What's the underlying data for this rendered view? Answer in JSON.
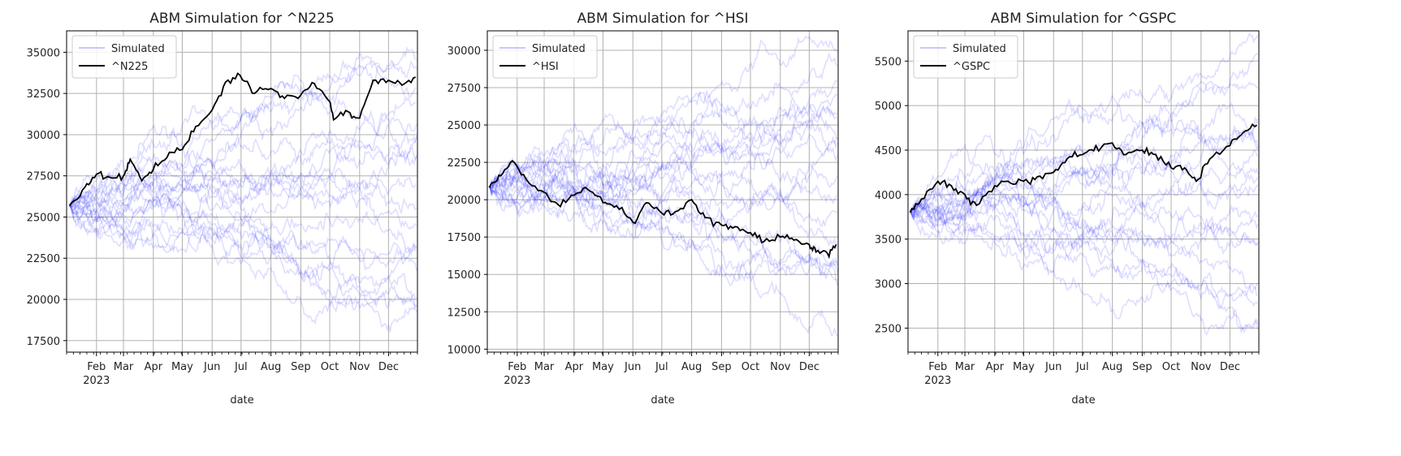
{
  "chart_data": [
    {
      "type": "line",
      "title": "ABM Simulation for ^N225",
      "xlabel": "date",
      "ylabel": "",
      "x_range": [
        "2023-01-01",
        "2023-12-31"
      ],
      "ylim": [
        16800,
        36300
      ],
      "yticks": [
        17500,
        20000,
        22500,
        25000,
        27500,
        30000,
        32500,
        35000
      ],
      "ytick_labels": [
        "17500",
        "20000",
        "22500",
        "25000",
        "27500",
        "30000",
        "32500",
        "35000"
      ],
      "xtick_dates": [
        "2023-02-01",
        "2023-03-01",
        "2023-04-01",
        "2023-05-01",
        "2023-06-01",
        "2023-07-01",
        "2023-08-01",
        "2023-09-01",
        "2023-10-01",
        "2023-11-01",
        "2023-12-01"
      ],
      "xtick_labels": [
        "Feb",
        "Mar",
        "Apr",
        "May",
        "Jun",
        "Jul",
        "Aug",
        "Sep",
        "Oct",
        "Nov",
        "Dec"
      ],
      "year_label": "2023",
      "grid": true,
      "legend": {
        "placement": "top-left",
        "entries": [
          "Simulated",
          "^N225"
        ]
      },
      "simulated_series": {
        "name": "Simulated",
        "count": 20,
        "start": 25700,
        "spread_end": [
          17800,
          35200
        ]
      },
      "series": [
        {
          "name": "^N225",
          "x": [
            "2023-01-04",
            "2023-01-20",
            "2023-02-01",
            "2023-02-15",
            "2023-03-01",
            "2023-03-08",
            "2023-03-20",
            "2023-04-01",
            "2023-04-15",
            "2023-05-01",
            "2023-05-15",
            "2023-06-01",
            "2023-06-15",
            "2023-06-30",
            "2023-07-15",
            "2023-08-01",
            "2023-08-15",
            "2023-09-01",
            "2023-09-15",
            "2023-10-01",
            "2023-10-05",
            "2023-10-20",
            "2023-11-01",
            "2023-11-15",
            "2023-12-01",
            "2023-12-15",
            "2023-12-29"
          ],
          "values": [
            25700,
            26800,
            27600,
            27400,
            27500,
            28500,
            27200,
            27900,
            28600,
            29100,
            30500,
            31500,
            33200,
            33600,
            32500,
            32800,
            32200,
            32400,
            33100,
            32000,
            30900,
            31400,
            31000,
            33300,
            33300,
            33000,
            33500
          ]
        }
      ]
    },
    {
      "type": "line",
      "title": "ABM Simulation for ^HSI",
      "xlabel": "date",
      "ylabel": "",
      "x_range": [
        "2023-01-01",
        "2023-12-31"
      ],
      "ylim": [
        9800,
        31300
      ],
      "yticks": [
        10000,
        12500,
        15000,
        17500,
        20000,
        22500,
        25000,
        27500,
        30000
      ],
      "ytick_labels": [
        "10000",
        "12500",
        "15000",
        "17500",
        "20000",
        "22500",
        "25000",
        "27500",
        "30000"
      ],
      "xtick_dates": [
        "2023-02-01",
        "2023-03-01",
        "2023-04-01",
        "2023-05-01",
        "2023-06-01",
        "2023-07-01",
        "2023-08-01",
        "2023-09-01",
        "2023-10-01",
        "2023-11-01",
        "2023-12-01"
      ],
      "xtick_labels": [
        "Feb",
        "Mar",
        "Apr",
        "May",
        "Jun",
        "Jul",
        "Aug",
        "Sep",
        "Oct",
        "Nov",
        "Dec"
      ],
      "year_label": "2023",
      "grid": true,
      "legend": {
        "placement": "top-left",
        "entries": [
          "Simulated",
          "^HSI"
        ]
      },
      "simulated_series": {
        "name": "Simulated",
        "count": 20,
        "start": 20800,
        "spread_end": [
          12500,
          30000
        ]
      },
      "series": [
        {
          "name": "^HSI",
          "x": [
            "2023-01-03",
            "2023-01-15",
            "2023-01-27",
            "2023-02-10",
            "2023-03-01",
            "2023-03-15",
            "2023-04-01",
            "2023-04-15",
            "2023-05-01",
            "2023-05-15",
            "2023-06-01",
            "2023-06-15",
            "2023-07-01",
            "2023-07-15",
            "2023-08-01",
            "2023-08-15",
            "2023-09-01",
            "2023-09-15",
            "2023-10-01",
            "2023-10-15",
            "2023-11-01",
            "2023-11-15",
            "2023-12-01",
            "2023-12-08",
            "2023-12-20",
            "2023-12-29"
          ],
          "values": [
            20800,
            21600,
            22600,
            21400,
            20500,
            19700,
            20300,
            20700,
            19800,
            19600,
            18500,
            19800,
            19100,
            19200,
            20000,
            18800,
            18300,
            18200,
            17800,
            17200,
            17500,
            17300,
            17000,
            16500,
            16400,
            17000
          ]
        }
      ]
    },
    {
      "type": "line",
      "title": "ABM Simulation for ^GSPC",
      "xlabel": "date",
      "ylabel": "",
      "x_range": [
        "2023-01-01",
        "2023-12-31"
      ],
      "ylim": [
        2230,
        5840
      ],
      "yticks": [
        2500,
        3000,
        3500,
        4000,
        4500,
        5000,
        5500
      ],
      "ytick_labels": [
        "2500",
        "3000",
        "3500",
        "4000",
        "4500",
        "5000",
        "5500"
      ],
      "xtick_dates": [
        "2023-02-01",
        "2023-03-01",
        "2023-04-01",
        "2023-05-01",
        "2023-06-01",
        "2023-07-01",
        "2023-08-01",
        "2023-09-01",
        "2023-10-01",
        "2023-11-01",
        "2023-12-01"
      ],
      "xtick_labels": [
        "Feb",
        "Mar",
        "Apr",
        "May",
        "Jun",
        "Jul",
        "Aug",
        "Sep",
        "Oct",
        "Nov",
        "Dec"
      ],
      "year_label": "2023",
      "grid": true,
      "legend": {
        "placement": "top-left",
        "entries": [
          "Simulated",
          "^GSPC"
        ]
      },
      "simulated_series": {
        "name": "Simulated",
        "count": 20,
        "start": 3800,
        "spread_end": [
          2500,
          5700
        ]
      },
      "series": [
        {
          "name": "^GSPC",
          "x": [
            "2023-01-03",
            "2023-01-15",
            "2023-02-01",
            "2023-02-15",
            "2023-03-01",
            "2023-03-13",
            "2023-04-01",
            "2023-04-15",
            "2023-05-01",
            "2023-05-15",
            "2023-06-01",
            "2023-06-15",
            "2023-07-01",
            "2023-07-15",
            "2023-08-01",
            "2023-08-15",
            "2023-09-01",
            "2023-09-15",
            "2023-10-01",
            "2023-10-15",
            "2023-10-27",
            "2023-11-10",
            "2023-12-01",
            "2023-12-15",
            "2023-12-29"
          ],
          "values": [
            3800,
            3950,
            4150,
            4100,
            4000,
            3880,
            4100,
            4150,
            4150,
            4200,
            4250,
            4400,
            4450,
            4550,
            4580,
            4450,
            4500,
            4450,
            4300,
            4300,
            4150,
            4400,
            4550,
            4700,
            4780
          ]
        }
      ]
    }
  ]
}
